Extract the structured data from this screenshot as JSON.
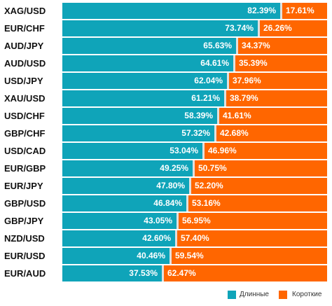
{
  "chart_data": {
    "type": "bar",
    "stacked": true,
    "orientation": "horizontal",
    "categories": [
      "XAG/USD",
      "EUR/CHF",
      "AUD/JPY",
      "AUD/USD",
      "USD/JPY",
      "XAU/USD",
      "USD/CHF",
      "GBP/CHF",
      "USD/CAD",
      "EUR/GBP",
      "EUR/JPY",
      "GBP/USD",
      "GBP/JPY",
      "NZD/USD",
      "EUR/USD",
      "EUR/AUD"
    ],
    "series": [
      {
        "name": "Длинные",
        "color": "#0fa4b9",
        "values": [
          82.39,
          73.74,
          65.63,
          64.61,
          62.04,
          61.21,
          58.39,
          57.32,
          53.04,
          49.25,
          47.8,
          46.84,
          43.05,
          42.6,
          40.46,
          37.53
        ],
        "labels": [
          "82.39%",
          "73.74%",
          "65.63%",
          "64.61%",
          "62.04%",
          "61.21%",
          "58.39%",
          "57.32%",
          "53.04%",
          "49.25%",
          "47.80%",
          "46.84%",
          "43.05%",
          "42.60%",
          "40.46%",
          "37.53%"
        ]
      },
      {
        "name": "Короткие",
        "color": "#ff6600",
        "values": [
          17.61,
          26.26,
          34.37,
          35.39,
          37.96,
          38.79,
          41.61,
          42.68,
          46.96,
          50.75,
          52.2,
          53.16,
          56.95,
          57.4,
          59.54,
          62.47
        ],
        "labels": [
          "17.61%",
          "26.26%",
          "34.37%",
          "35.39%",
          "37.96%",
          "38.79%",
          "41.61%",
          "42.68%",
          "46.96%",
          "50.75%",
          "52.20%",
          "53.16%",
          "56.95%",
          "57.40%",
          "59.54%",
          "62.47%"
        ]
      }
    ],
    "xlim": [
      0,
      100
    ],
    "grid": false,
    "legend_position": "bottom-right"
  }
}
